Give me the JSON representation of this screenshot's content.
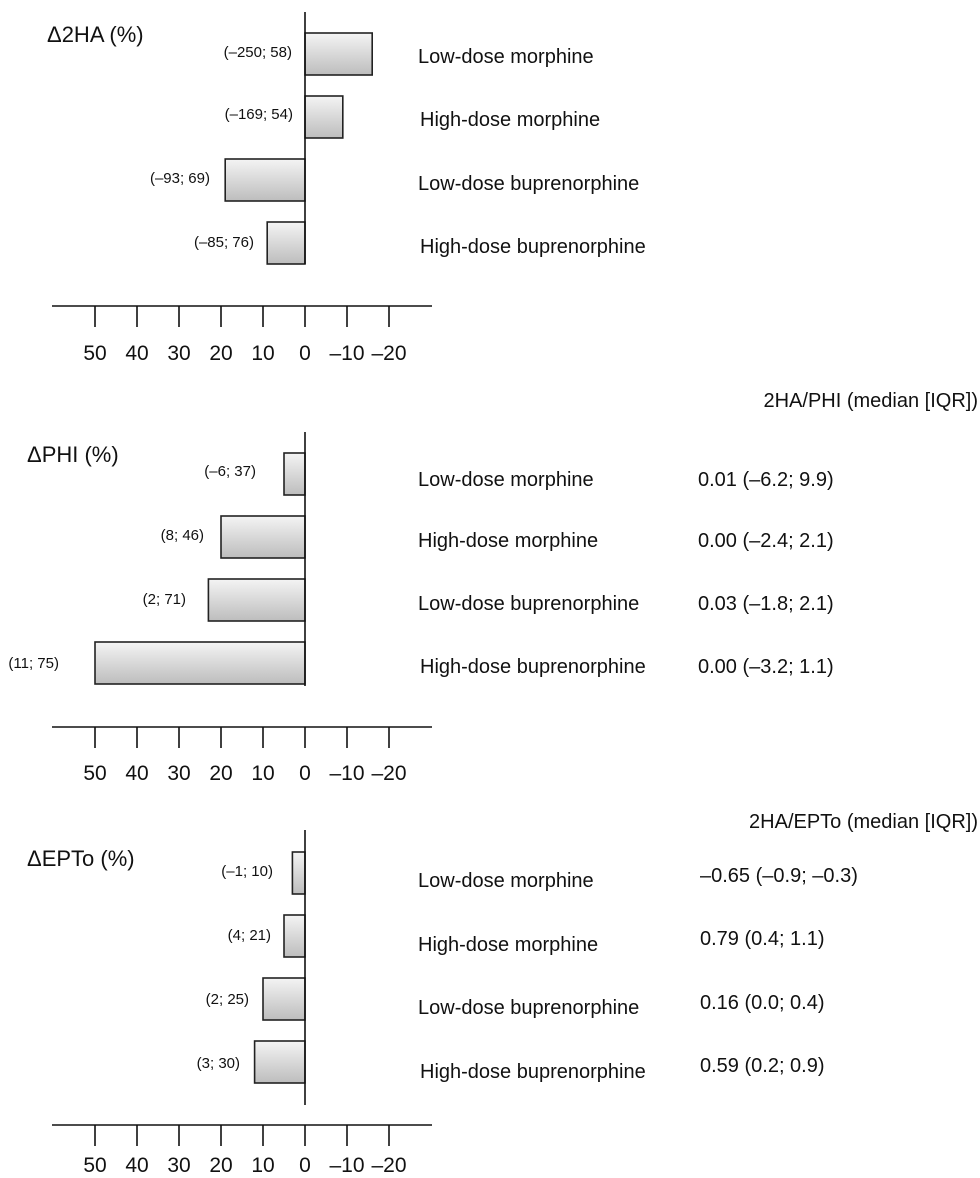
{
  "colors": {
    "bar_gradient_start": "#f4f4f4",
    "bar_gradient_end": "#bdbdbd",
    "axis": "#111111",
    "text": "#111111"
  },
  "chart_data": [
    {
      "type": "bar",
      "orientation": "horizontal",
      "x_axis_direction": "reversed",
      "title": "Δ2HA (%)",
      "categories": [
        "Low-dose morphine",
        "High-dose morphine",
        "Low-dose buprenorphine",
        "High-dose buprenorphine"
      ],
      "values": [
        -16,
        -9,
        19,
        9
      ],
      "bar_labels": [
        "(–250; 58)",
        "(–169; 54)",
        "(–93; 69)",
        "(–85; 76)"
      ],
      "xlim": [
        50,
        -20
      ],
      "xticks": [
        50,
        40,
        30,
        20,
        10,
        0,
        -10,
        -20
      ],
      "xtick_labels": [
        "50",
        "40",
        "30",
        "20",
        "10",
        "0",
        "–10",
        "–20"
      ],
      "ratio_header": "",
      "ratio_labels": []
    },
    {
      "type": "bar",
      "orientation": "horizontal",
      "x_axis_direction": "reversed",
      "title": "ΔPHI (%)",
      "categories": [
        "Low-dose morphine",
        "High-dose morphine",
        "Low-dose buprenorphine",
        "High-dose buprenorphine"
      ],
      "values": [
        5,
        20,
        23,
        50
      ],
      "bar_labels": [
        "(–6; 37)",
        "(8; 46)",
        "(2; 71)",
        "(11; 75)"
      ],
      "xlim": [
        50,
        -20
      ],
      "xticks": [
        50,
        40,
        30,
        20,
        10,
        0,
        -10,
        -20
      ],
      "xtick_labels": [
        "50",
        "40",
        "30",
        "20",
        "10",
        "0",
        "–10",
        "–20"
      ],
      "ratio_header": "2HA/PHI (median [IQR])",
      "ratio_labels": [
        "0.01 (–6.2; 9.9)",
        "0.00 (–2.4; 2.1)",
        "0.03 (–1.8; 2.1)",
        "0.00 (–3.2; 1.1)"
      ]
    },
    {
      "type": "bar",
      "orientation": "horizontal",
      "x_axis_direction": "reversed",
      "title": "ΔEPTo (%)",
      "categories": [
        "Low-dose morphine",
        "High-dose morphine",
        "Low-dose buprenorphine",
        "High-dose buprenorphine"
      ],
      "values": [
        3,
        5,
        10,
        12
      ],
      "bar_labels": [
        "(–1; 10)",
        "(4; 21)",
        "(2; 25)",
        "(3; 30)"
      ],
      "xlim": [
        50,
        -20
      ],
      "xticks": [
        50,
        40,
        30,
        20,
        10,
        0,
        -10,
        -20
      ],
      "xtick_labels": [
        "50",
        "40",
        "30",
        "20",
        "10",
        "0",
        "–10",
        "–20"
      ],
      "ratio_header": "2HA/EPTo (median [IQR])",
      "ratio_labels": [
        "–0.65 (–0.9; –0.3)",
        "0.79 (0.4; 1.1)",
        "0.16 (0.0; 0.4)",
        "0.59 (0.2; 0.9)"
      ]
    }
  ]
}
